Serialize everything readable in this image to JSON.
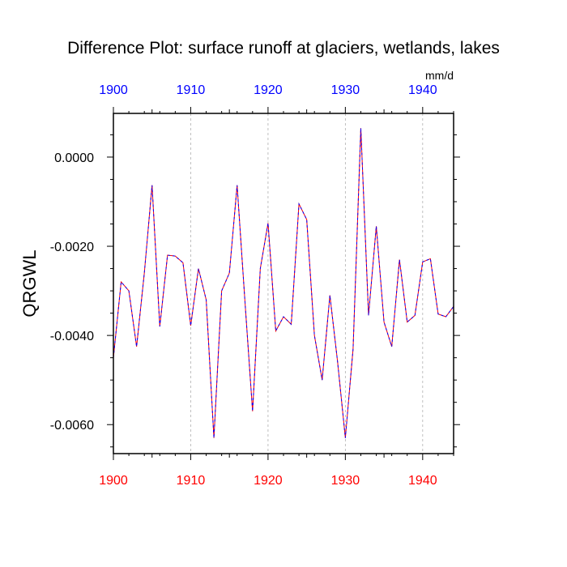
{
  "chart_data": {
    "type": "line",
    "title": "Difference Plot: surface runoff at glaciers, wetlands, lakes",
    "units": "mm/d",
    "ylabel": "QRGWL",
    "xlabel": "",
    "xlim": [
      1900,
      1944
    ],
    "ylim": [
      -0.00665,
      0.00098
    ],
    "x_ticks": [
      1900,
      1910,
      1920,
      1930,
      1940
    ],
    "x_tick_labels_top": [
      "1900",
      "1910",
      "1920",
      "1930",
      "1940"
    ],
    "x_tick_labels_bottom": [
      "1900",
      "1910",
      "1920",
      "1930",
      "1940"
    ],
    "y_ticks": [
      0.0,
      -0.002,
      -0.004,
      -0.006
    ],
    "y_tick_labels": [
      "0.0000",
      "-0.0020",
      "-0.0040",
      "-0.0060"
    ],
    "grid": "vertical dashed at major x ticks",
    "colors": {
      "top_axis_labels": "#0000ff",
      "bottom_axis_labels": "#ff0000",
      "series_primary": "#0000ff",
      "series_secondary": "#ff0000",
      "axis": "#000000",
      "grid": "#b0b0b0"
    },
    "x": [
      1900,
      1901,
      1902,
      1903,
      1904,
      1905,
      1906,
      1907,
      1908,
      1909,
      1910,
      1911,
      1912,
      1913,
      1914,
      1915,
      1916,
      1917,
      1918,
      1919,
      1920,
      1921,
      1922,
      1923,
      1924,
      1925,
      1926,
      1927,
      1928,
      1929,
      1930,
      1931,
      1932,
      1933,
      1934,
      1935,
      1936,
      1937,
      1938,
      1939,
      1940,
      1941,
      1942,
      1943,
      1944
    ],
    "series": [
      {
        "name": "QRGWL",
        "values": [
          -0.0045,
          -0.0028,
          -0.003,
          -0.00425,
          -0.0026,
          -0.00063,
          -0.0038,
          -0.0022,
          -0.00222,
          -0.00237,
          -0.00378,
          -0.0025,
          -0.0032,
          -0.0063,
          -0.003,
          -0.0026,
          -0.00063,
          -0.0032,
          -0.0057,
          -0.0025,
          -0.00148,
          -0.0039,
          -0.00358,
          -0.00375,
          -0.00105,
          -0.0014,
          -0.004,
          -0.005,
          -0.0031,
          -0.0046,
          -0.0063,
          -0.0043,
          0.00065,
          -0.00355,
          -0.00155,
          -0.0037,
          -0.00425,
          -0.0023,
          -0.0037,
          -0.00355,
          -0.00235,
          -0.00228,
          -0.00352,
          -0.00358,
          -0.00335
        ]
      }
    ]
  }
}
